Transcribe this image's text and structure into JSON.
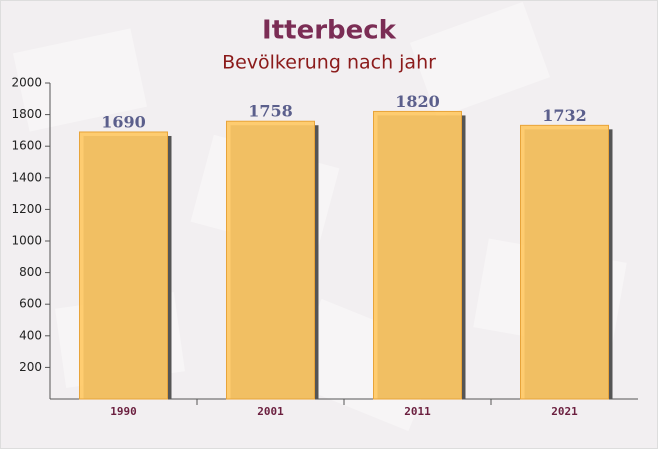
{
  "chart_data": {
    "type": "bar",
    "title": "Itterbeck",
    "subtitle": "Bevölkerung nach jahr",
    "categories": [
      "1990",
      "2001",
      "2011",
      "2021"
    ],
    "values": [
      1690,
      1758,
      1820,
      1732
    ],
    "color": "#ffc965",
    "ylim": [
      0,
      2000
    ],
    "yticks": [
      200,
      400,
      600,
      800,
      1000,
      1200,
      1400,
      1600,
      1800,
      2000
    ]
  }
}
